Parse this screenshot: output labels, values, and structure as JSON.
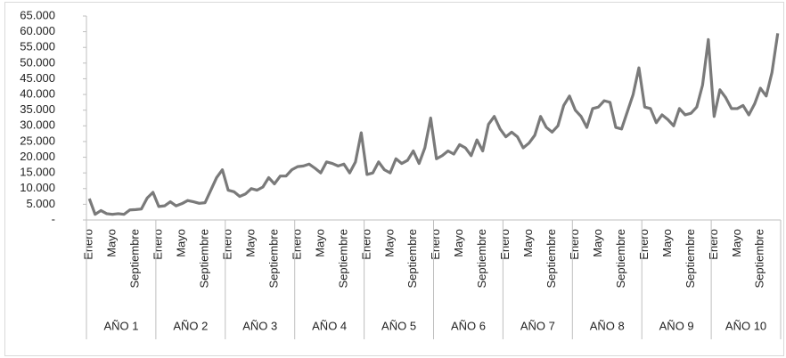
{
  "chart_data": {
    "type": "line",
    "categories": [
      "Enero",
      null,
      null,
      null,
      "Mayo",
      null,
      null,
      null,
      "Septiembre",
      null,
      null,
      null,
      "Enero",
      null,
      null,
      null,
      "Mayo",
      null,
      null,
      null,
      "Septiembre",
      null,
      null,
      null,
      "Enero",
      null,
      null,
      null,
      "Mayo",
      null,
      null,
      null,
      "Septiembre",
      null,
      null,
      null,
      "Enero",
      null,
      null,
      null,
      "Mayo",
      null,
      null,
      null,
      "Septiembre",
      null,
      null,
      null,
      "Enero",
      null,
      null,
      null,
      "Mayo",
      null,
      null,
      null,
      "Septiembre",
      null,
      null,
      null,
      "Enero",
      null,
      null,
      null,
      "Mayo",
      null,
      null,
      null,
      "Septiembre",
      null,
      null,
      null,
      "Enero",
      null,
      null,
      null,
      "Mayo",
      null,
      null,
      null,
      "Septiembre",
      null,
      null,
      null,
      "Enero",
      null,
      null,
      null,
      "Mayo",
      null,
      null,
      null,
      "Septiembre",
      null,
      null,
      null,
      "Enero",
      null,
      null,
      null,
      "Mayo",
      null,
      null,
      null,
      "Septiembre",
      null,
      null,
      null,
      "Enero",
      null,
      null,
      null,
      "Mayo",
      null,
      null,
      null,
      "Septiembre",
      null,
      null,
      null
    ],
    "groups": [
      "AÑO 1",
      "AÑO 2",
      "AÑO 3",
      "AÑO 4",
      "AÑO 5",
      "AÑO 6",
      "AÑO 7",
      "AÑO 8",
      "AÑO 9",
      "AÑO 10"
    ],
    "values": [
      6800,
      1800,
      3000,
      2000,
      1800,
      2000,
      1800,
      3200,
      3300,
      3500,
      7000,
      8800,
      4300,
      4500,
      5800,
      4500,
      5200,
      6200,
      5800,
      5300,
      5500,
      9500,
      13500,
      16000,
      9500,
      9000,
      7500,
      8300,
      10000,
      9500,
      10500,
      13500,
      11500,
      14000,
      14000,
      16000,
      17000,
      17200,
      17800,
      16500,
      15000,
      18500,
      18000,
      17200,
      17800,
      15000,
      18500,
      27800,
      14500,
      15000,
      18500,
      16000,
      15000,
      19500,
      18000,
      19000,
      22000,
      18000,
      23000,
      32500,
      19500,
      20500,
      22000,
      21000,
      24000,
      23000,
      20500,
      25500,
      22000,
      30500,
      33000,
      29000,
      26500,
      28000,
      26500,
      23000,
      24500,
      27000,
      33000,
      29500,
      28000,
      30000,
      36500,
      39500,
      35000,
      33000,
      29500,
      35500,
      36000,
      38000,
      37500,
      29500,
      29000,
      34500,
      40000,
      48500,
      36000,
      35500,
      31000,
      33500,
      32000,
      30000,
      35500,
      33500,
      34000,
      36000,
      43000,
      57500,
      33000,
      41500,
      39000,
      35500,
      35500,
      36500,
      33500,
      37000,
      42000,
      39500,
      47000,
      59500
    ],
    "color": "#7a7a7a",
    "ylim": [
      0,
      65000
    ],
    "yticks": [
      {
        "value": 0,
        "label": "-"
      },
      {
        "value": 5000,
        "label": "5.000"
      },
      {
        "value": 10000,
        "label": "10.000"
      },
      {
        "value": 15000,
        "label": "15.000"
      },
      {
        "value": 20000,
        "label": "20.000"
      },
      {
        "value": 25000,
        "label": "25.000"
      },
      {
        "value": 30000,
        "label": "30.000"
      },
      {
        "value": 35000,
        "label": "35.000"
      },
      {
        "value": 40000,
        "label": "40.000"
      },
      {
        "value": 45000,
        "label": "45.000"
      },
      {
        "value": 50000,
        "label": "50.000"
      },
      {
        "value": 55000,
        "label": "55.000"
      },
      {
        "value": 60000,
        "label": "60.000"
      },
      {
        "value": 65000,
        "label": "65.000"
      }
    ],
    "grid": false
  }
}
